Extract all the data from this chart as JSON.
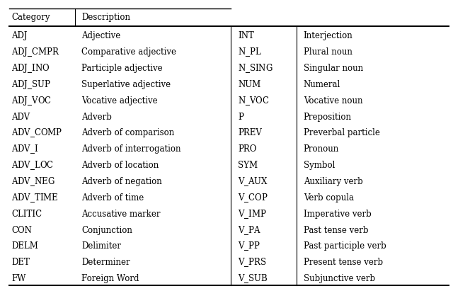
{
  "header_row": [
    "Category",
    "Description"
  ],
  "left_data": [
    [
      "ADJ",
      "Adjective"
    ],
    [
      "ADJ CMPR",
      "Comparative adjective"
    ],
    [
      "ADJ INO",
      "Participle adjective"
    ],
    [
      "ADJ SUP",
      "Superlative adjective"
    ],
    [
      "ADJ VOC",
      "Vocative adjective"
    ],
    [
      "ADV",
      "Adverb"
    ],
    [
      "ADV COMP",
      "Adverb of comparison"
    ],
    [
      "ADV I",
      "Adverb of interrogation"
    ],
    [
      "ADV LOC",
      "Adverb of location"
    ],
    [
      "ADV NEG",
      "Adverb of negation"
    ],
    [
      "ADV TIME",
      "Adverb of time"
    ],
    [
      "CLITIC",
      "Accusative marker"
    ],
    [
      "CON",
      "Conjunction"
    ],
    [
      "DELM",
      "Delimiter"
    ],
    [
      "DET",
      "Determiner"
    ],
    [
      "FW",
      "Foreign Word"
    ]
  ],
  "right_data": [
    [
      "INT",
      "Interjection"
    ],
    [
      "N PL",
      "Plural noun"
    ],
    [
      "N SING",
      "Singular noun"
    ],
    [
      "NUM",
      "Numeral"
    ],
    [
      "N VOC",
      "Vocative noun"
    ],
    [
      "P",
      "Preposition"
    ],
    [
      "PREV",
      "Preverbal particle"
    ],
    [
      "PRO",
      "Pronoun"
    ],
    [
      "SYM",
      "Symbol"
    ],
    [
      "V AUX",
      "Auxiliary verb"
    ],
    [
      "V COP",
      "Verb copula"
    ],
    [
      "V IMP",
      "Imperative verb"
    ],
    [
      "V PA",
      "Past tense verb"
    ],
    [
      "V PP",
      "Past participle verb"
    ],
    [
      "V PRS",
      "Present tense verb"
    ],
    [
      "V SUB",
      "Subjunctive verb"
    ]
  ],
  "bg_color": "#ffffff",
  "text_color": "#000000",
  "line_color": "#000000",
  "font_size": 8.5,
  "header_font_size": 8.5,
  "fig_width": 6.4,
  "fig_height": 4.11,
  "dpi": 100
}
